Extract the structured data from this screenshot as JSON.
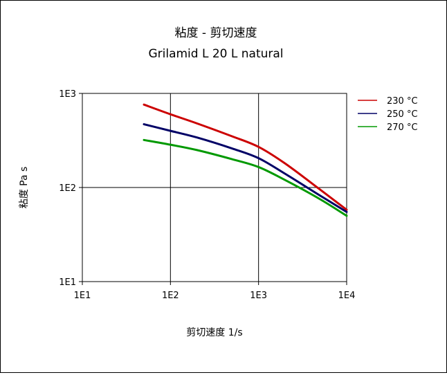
{
  "chart_data": {
    "type": "line",
    "title": "粘度 - 剪切速度",
    "subtitle": "Grilamid L 20 L natural",
    "xlabel": "剪切速度 1/s",
    "ylabel": "粘度 Pa s",
    "x_scale": "log",
    "y_scale": "log",
    "xlim": [
      10,
      10000
    ],
    "ylim": [
      10,
      1000
    ],
    "x_ticks": [
      {
        "value": 10,
        "label": "1E1"
      },
      {
        "value": 100,
        "label": "1E2"
      },
      {
        "value": 1000,
        "label": "1E3"
      },
      {
        "value": 10000,
        "label": "1E4"
      }
    ],
    "y_ticks": [
      {
        "value": 10,
        "label": "1E1"
      },
      {
        "value": 100,
        "label": "1E2"
      },
      {
        "value": 1000,
        "label": "1E3"
      }
    ],
    "grid": true,
    "legend_position": "top-right",
    "series": [
      {
        "name": "230 °C",
        "color": "#cc0000",
        "x": [
          50,
          100,
          200,
          500,
          1000,
          2000,
          5000,
          10000
        ],
        "y": [
          760,
          600,
          480,
          350,
          270,
          180,
          95,
          58
        ]
      },
      {
        "name": "250 °C",
        "color": "#000066",
        "x": [
          50,
          100,
          200,
          500,
          1000,
          2000,
          5000,
          10000
        ],
        "y": [
          470,
          400,
          340,
          260,
          205,
          140,
          82,
          55
        ]
      },
      {
        "name": "270 °C",
        "color": "#009900",
        "x": [
          50,
          100,
          200,
          500,
          1000,
          2000,
          5000,
          10000
        ],
        "y": [
          320,
          285,
          250,
          200,
          165,
          120,
          75,
          50
        ]
      }
    ]
  }
}
